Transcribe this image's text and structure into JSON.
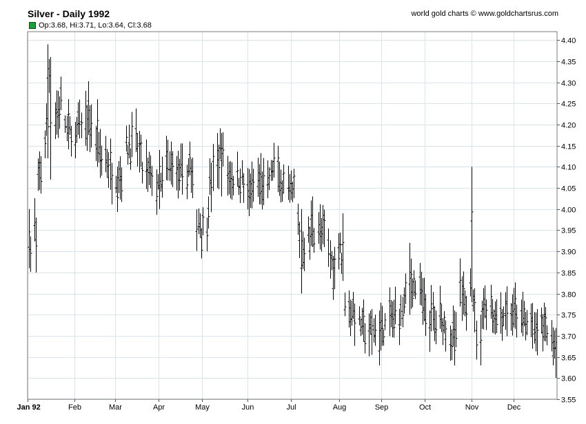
{
  "title": "Silver - Daily 1992",
  "credit": "world gold charts © www.goldchartsrus.com",
  "legend": "Op:3.68, Hi:3.71, Lo:3.64, Cl:3.68",
  "colors": {
    "bars": "#000000",
    "grid": "#d8e4ec",
    "legend_swatch": "#1e9e3a"
  },
  "chart_data": {
    "type": "ohlc",
    "title": "Silver - Daily 1992",
    "ylim": [
      3.55,
      4.42
    ],
    "yticks": [
      3.55,
      3.6,
      3.65,
      3.7,
      3.75,
      3.8,
      3.85,
      3.9,
      3.95,
      4.0,
      4.05,
      4.1,
      4.15,
      4.2,
      4.25,
      4.3,
      4.35,
      4.4
    ],
    "ytick_labels": [
      "3.55",
      "3.60",
      "3.65",
      "3.70",
      "3.75",
      "3.80",
      "3.85",
      "3.90",
      "3.95",
      "4.00",
      "4.05",
      "4.10",
      "4.15",
      "4.20",
      "4.25",
      "4.30",
      "4.35",
      "4.40"
    ],
    "x_start": "1992-01-02",
    "x_end": "1992-12-31",
    "months": [
      {
        "label": "Jan 92",
        "date": "1992-01-02"
      },
      {
        "label": "Feb",
        "date": "1992-02-03"
      },
      {
        "label": "Mar",
        "date": "1992-03-02"
      },
      {
        "label": "Apr",
        "date": "1992-04-01"
      },
      {
        "label": "May",
        "date": "1992-05-01"
      },
      {
        "label": "Jun",
        "date": "1992-06-01"
      },
      {
        "label": "Jul",
        "date": "1992-07-01"
      },
      {
        "label": "Aug",
        "date": "1992-08-03"
      },
      {
        "label": "Sep",
        "date": "1992-09-01"
      },
      {
        "label": "Oct",
        "date": "1992-10-01"
      },
      {
        "label": "Nov",
        "date": "1992-11-02"
      },
      {
        "label": "Dec",
        "date": "1992-12-01"
      }
    ],
    "anchors": [
      [
        "1992-01-02",
        3.88
      ],
      [
        "1992-01-06",
        3.97
      ],
      [
        "1992-01-09",
        4.08
      ],
      [
        "1992-01-14",
        4.18
      ],
      [
        "1992-01-16",
        4.33
      ],
      [
        "1992-01-20",
        4.22
      ],
      [
        "1992-01-24",
        4.24
      ],
      [
        "1992-01-29",
        4.18
      ],
      [
        "1992-02-03",
        4.17
      ],
      [
        "1992-02-07",
        4.2
      ],
      [
        "1992-02-12",
        4.22
      ],
      [
        "1992-02-18",
        4.14
      ],
      [
        "1992-02-24",
        4.12
      ],
      [
        "1992-02-28",
        4.08
      ],
      [
        "1992-03-05",
        4.08
      ],
      [
        "1992-03-10",
        4.15
      ],
      [
        "1992-03-16",
        4.16
      ],
      [
        "1992-03-20",
        4.1
      ],
      [
        "1992-03-26",
        4.08
      ],
      [
        "1992-04-01",
        4.04
      ],
      [
        "1992-04-06",
        4.1
      ],
      [
        "1992-04-10",
        4.11
      ],
      [
        "1992-04-16",
        4.07
      ],
      [
        "1992-04-22",
        4.1
      ],
      [
        "1992-04-27",
        3.97
      ],
      [
        "1992-05-01",
        3.96
      ],
      [
        "1992-05-05",
        4.03
      ],
      [
        "1992-05-08",
        4.08
      ],
      [
        "1992-05-13",
        4.12
      ],
      [
        "1992-05-18",
        4.09
      ],
      [
        "1992-05-22",
        4.07
      ],
      [
        "1992-05-28",
        4.07
      ],
      [
        "1992-06-03",
        4.03
      ],
      [
        "1992-06-09",
        4.06
      ],
      [
        "1992-06-15",
        4.05
      ],
      [
        "1992-06-19",
        4.11
      ],
      [
        "1992-06-24",
        4.06
      ],
      [
        "1992-06-30",
        4.02
      ],
      [
        "1992-07-03",
        4.04
      ],
      [
        "1992-07-08",
        3.9
      ],
      [
        "1992-07-13",
        3.93
      ],
      [
        "1992-07-16",
        3.96
      ],
      [
        "1992-07-21",
        3.95
      ],
      [
        "1992-07-27",
        3.9
      ],
      [
        "1992-07-31",
        3.86
      ],
      [
        "1992-08-04",
        3.93
      ],
      [
        "1992-08-07",
        3.8
      ],
      [
        "1992-08-13",
        3.75
      ],
      [
        "1992-08-19",
        3.72
      ],
      [
        "1992-08-25",
        3.7
      ],
      [
        "1992-08-31",
        3.72
      ],
      [
        "1992-09-04",
        3.72
      ],
      [
        "1992-09-09",
        3.74
      ],
      [
        "1992-09-14",
        3.75
      ],
      [
        "1992-09-18",
        3.8
      ],
      [
        "1992-09-23",
        3.83
      ],
      [
        "1992-09-28",
        3.8
      ],
      [
        "1992-10-02",
        3.75
      ],
      [
        "1992-10-07",
        3.74
      ],
      [
        "1992-10-12",
        3.75
      ],
      [
        "1992-10-16",
        3.73
      ],
      [
        "1992-10-22",
        3.7
      ],
      [
        "1992-10-26",
        3.8
      ],
      [
        "1992-10-30",
        3.76
      ],
      [
        "1992-11-03",
        3.86
      ],
      [
        "1992-11-06",
        3.7
      ],
      [
        "1992-11-10",
        3.78
      ],
      [
        "1992-11-16",
        3.76
      ],
      [
        "1992-11-20",
        3.74
      ],
      [
        "1992-11-25",
        3.75
      ],
      [
        "1992-12-01",
        3.75
      ],
      [
        "1992-12-07",
        3.74
      ],
      [
        "1992-12-11",
        3.73
      ],
      [
        "1992-12-17",
        3.71
      ],
      [
        "1992-12-22",
        3.73
      ],
      [
        "1992-12-28",
        3.7
      ],
      [
        "1992-12-31",
        3.68
      ]
    ],
    "spikes": [
      {
        "date": "1992-01-02",
        "low": 3.86,
        "high": 4.0
      },
      {
        "date": "1992-01-07",
        "low": 3.85,
        "high": 3.98
      },
      {
        "date": "1992-01-15",
        "low": 4.12,
        "high": 4.39
      },
      {
        "date": "1992-01-17",
        "low": 4.07,
        "high": 4.36
      },
      {
        "date": "1992-02-10",
        "low": 4.15,
        "high": 4.28
      },
      {
        "date": "1992-02-18",
        "low": 4.1,
        "high": 4.26
      },
      {
        "date": "1992-03-11",
        "low": 4.12,
        "high": 4.2
      },
      {
        "date": "1992-04-01",
        "low": 4.0,
        "high": 4.14
      },
      {
        "date": "1992-04-22",
        "low": 4.08,
        "high": 4.16
      },
      {
        "date": "1992-05-04",
        "low": 3.9,
        "high": 3.98
      },
      {
        "date": "1992-05-11",
        "low": 4.05,
        "high": 4.18
      },
      {
        "date": "1992-05-14",
        "low": 4.03,
        "high": 4.18
      },
      {
        "date": "1992-06-22",
        "low": 4.04,
        "high": 4.15
      },
      {
        "date": "1992-07-08",
        "low": 3.8,
        "high": 4.0
      },
      {
        "date": "1992-07-16",
        "low": 3.91,
        "high": 4.03
      },
      {
        "date": "1992-08-06",
        "low": 3.83,
        "high": 3.99
      },
      {
        "date": "1992-08-31",
        "low": 3.63,
        "high": 3.76
      },
      {
        "date": "1992-09-21",
        "low": 3.75,
        "high": 3.92
      },
      {
        "date": "1992-10-22",
        "low": 3.63,
        "high": 3.76
      },
      {
        "date": "1992-11-03",
        "low": 3.78,
        "high": 4.1
      },
      {
        "date": "1992-11-09",
        "low": 3.63,
        "high": 3.75
      },
      {
        "date": "1992-12-29",
        "low": 3.63,
        "high": 3.72
      }
    ]
  }
}
